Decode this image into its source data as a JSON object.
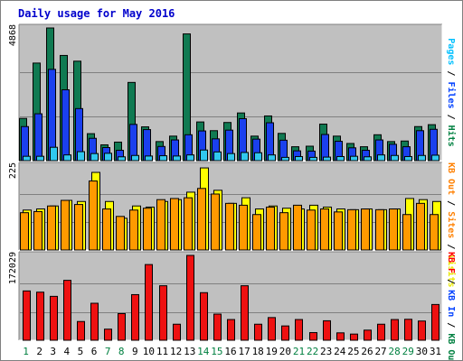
{
  "chart_data": {
    "type": "bar",
    "title": "Daily usage for May 2016",
    "categories": [
      "1",
      "2",
      "3",
      "4",
      "5",
      "6",
      "7",
      "8",
      "9",
      "10",
      "11",
      "12",
      "13",
      "14",
      "15",
      "16",
      "17",
      "18",
      "19",
      "20",
      "21",
      "22",
      "23",
      "24",
      "25",
      "26",
      "27",
      "28",
      "29",
      "30",
      "31"
    ],
    "weekend_days": [
      "1",
      "7",
      "8",
      "14",
      "15",
      "21",
      "22",
      "28",
      "29"
    ],
    "panels": [
      {
        "name": "requests",
        "max_label": "4868",
        "ymax": 4868,
        "right_legend": [
          {
            "text": "Pages",
            "color": "#00c0ff"
          },
          {
            "text": " / ",
            "color": "#000000"
          },
          {
            "text": "Files",
            "color": "#0040ff"
          },
          {
            "text": " / ",
            "color": "#000000"
          },
          {
            "text": "Hits",
            "color": "#008040"
          }
        ],
        "series": [
          {
            "name": "Hits",
            "color": "#107a52",
            "values": [
              1550,
              3580,
              4868,
              3860,
              3650,
              990,
              580,
              680,
              2870,
              1240,
              700,
              900,
              4650,
              1420,
              1100,
              1400,
              1750,
              900,
              1640,
              1000,
              510,
              530,
              1340,
              900,
              630,
              510,
              950,
              700,
              720,
              1250,
              1320
            ]
          },
          {
            "name": "Files",
            "color": "#1a40ee",
            "values": [
              1250,
              1720,
              3350,
              2600,
              1910,
              820,
              480,
              380,
              1330,
              1140,
              520,
              760,
              950,
              1090,
              800,
              1120,
              1540,
              790,
              1390,
              750,
              360,
              350,
              960,
              710,
              470,
              380,
              760,
              600,
              510,
              1100,
              1150
            ]
          },
          {
            "name": "Pages",
            "color": "#30c8ef",
            "values": [
              160,
              160,
              490,
              210,
              330,
              260,
              270,
              140,
              190,
              170,
              180,
              170,
              210,
              390,
              320,
              260,
              300,
              290,
              210,
              120,
              150,
              120,
              130,
              150,
              160,
              140,
              210,
              190,
              150,
              190,
              200
            ]
          }
        ]
      },
      {
        "name": "visits-sites",
        "max_label": "225",
        "ymax": 225,
        "right_legend": [
          {
            "text": "KB Out",
            "color": "#ff8000"
          },
          {
            "text": " / ",
            "color": "#000000"
          },
          {
            "text": "Sites",
            "color": "#ff8000"
          },
          {
            "text": " / ",
            "color": "#000000"
          },
          {
            "text": "Visits",
            "color": "#e8e800"
          }
        ],
        "series": [
          {
            "name": "Visits",
            "color": "#ffff00",
            "values": [
              107,
              110,
              118,
              133,
              130,
              208,
              130,
              85,
              118,
              115,
              130,
              135,
              155,
              220,
              160,
              125,
              140,
              110,
              118,
              112,
              110,
              120,
              115,
              110,
              108,
              110,
              108,
              110,
              138,
              135,
              130
            ]
          },
          {
            "name": "Sites",
            "color": "#ff9a00",
            "values": [
              100,
              103,
              118,
              133,
              122,
              185,
              110,
              90,
              107,
              112,
              135,
              138,
              140,
              165,
              150,
              125,
              120,
              95,
              115,
              100,
              120,
              107,
              110,
              102,
              108,
              110,
              108,
              110,
              95,
              125,
              95
            ]
          }
        ]
      },
      {
        "name": "traffic",
        "max_label": "172029",
        "ymax": 172029,
        "right_legend": [
          {
            "text": "KB F",
            "color": "#ff0000"
          },
          {
            "text": " / ",
            "color": "#000000"
          },
          {
            "text": "KB In",
            "color": "#0040ff"
          },
          {
            "text": " / ",
            "color": "#000000"
          },
          {
            "text": "KB Out",
            "color": "#008040"
          }
        ],
        "series": [
          {
            "name": "KB F",
            "color": "#ee1111",
            "values": [
              100000,
              97500,
              89000,
              121500,
              38000,
              75000,
              22500,
              54000,
              92500,
              153500,
              110500,
              32500,
              172029,
              96500,
              53000,
              42000,
              110500,
              32500,
              46000,
              29000,
              42000,
              15500,
              39500,
              15000,
              12500,
              20500,
              32500,
              42000,
              42500,
              39000,
              72500
            ]
          }
        ]
      }
    ]
  }
}
